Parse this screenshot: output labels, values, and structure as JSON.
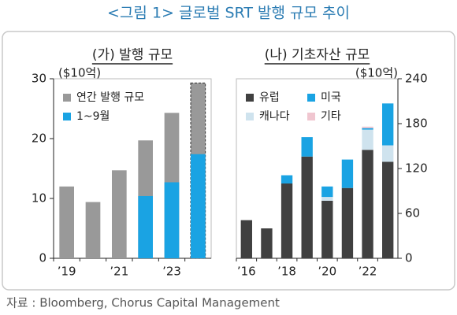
{
  "title": "<그림 1> 글로벌 SRT 발행 규모 추이",
  "source": "자료 : Bloomberg, Chorus Capital Management",
  "chart_data": [
    {
      "type": "bar",
      "title": "(가) 발행 규모",
      "y_unit": "($10억)",
      "y_axis_side": "left",
      "categories": [
        "’19",
        null,
        "’21",
        null,
        "’23",
        null
      ],
      "series": [
        {
          "name": "연간 발행 규모",
          "color": "#999999",
          "values": [
            12,
            9.4,
            14.7,
            19.7,
            24.3,
            29.3
          ]
        },
        {
          "name": "1~9월",
          "color": "#1aa3e3",
          "values": [
            null,
            null,
            null,
            10.4,
            12.7,
            17.4
          ]
        }
      ],
      "outline_last": "dashed",
      "ylim": [
        0,
        30
      ],
      "yticks": [
        0,
        10,
        20,
        30
      ]
    },
    {
      "type": "stacked_bar",
      "title": "(나) 기초자산 규모",
      "y_unit": "($10억)",
      "y_axis_side": "right",
      "categories": [
        "’16",
        null,
        "’18",
        null,
        "’20",
        null,
        "’22",
        null
      ],
      "series": [
        {
          "name": "유럽",
          "color": "#404040",
          "values": [
            51,
            40,
            100,
            136,
            77,
            94,
            145,
            129
          ]
        },
        {
          "name": "캐나다",
          "color": "#cfe3ee",
          "values": [
            0,
            0,
            0,
            0,
            5,
            0,
            27,
            22
          ]
        },
        {
          "name": "미국",
          "color": "#1aa3e3",
          "values": [
            0,
            0,
            11,
            26,
            14,
            38,
            2,
            56
          ]
        },
        {
          "name": "기타",
          "color": "#f0c6d0",
          "values": [
            0,
            0,
            0,
            0,
            0,
            0,
            2,
            0
          ]
        }
      ],
      "ylim": [
        0,
        240
      ],
      "yticks": [
        0,
        60,
        120,
        180,
        240
      ]
    }
  ]
}
